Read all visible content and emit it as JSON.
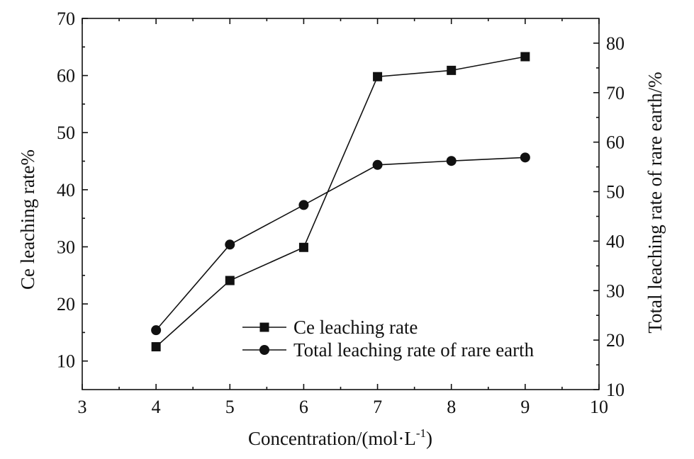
{
  "chart_data": {
    "type": "line",
    "xlabel_text": "Concentration/(mol·L",
    "xlabel_sup": "-1",
    "xlabel_close": ")",
    "ylabel_left": "Ce leaching rate%",
    "ylabel_right": "Total leaching rate of rare earth/%",
    "xlim": [
      3,
      10
    ],
    "ylim_left": [
      5,
      70
    ],
    "ylim_right": [
      10,
      85
    ],
    "x_ticks": [
      3,
      4,
      5,
      6,
      7,
      8,
      9,
      10
    ],
    "y_left_ticks": [
      10,
      20,
      30,
      40,
      50,
      60,
      70
    ],
    "y_right_ticks": [
      10,
      20,
      30,
      40,
      50,
      60,
      70,
      80
    ],
    "legend_position": "lower-center",
    "series": [
      {
        "name": "Ce leaching rate",
        "axis": "left",
        "marker": "square",
        "x": [
          4,
          5,
          6,
          7,
          8,
          9
        ],
        "values": [
          12.5,
          24.1,
          29.9,
          59.8,
          60.9,
          63.3
        ]
      },
      {
        "name": "Total leaching rate of rare earth",
        "axis": "right",
        "marker": "circle",
        "x": [
          4,
          5,
          6,
          7,
          8,
          9
        ],
        "values": [
          22.0,
          39.3,
          47.3,
          55.4,
          56.2,
          56.9
        ]
      }
    ]
  }
}
